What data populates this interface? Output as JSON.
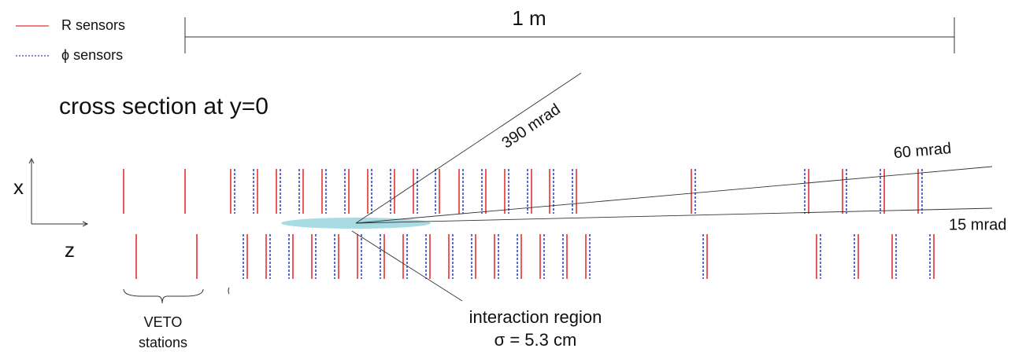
{
  "legend": {
    "r_sensors": "R sensors",
    "phi_sensors": "ϕ sensors"
  },
  "scale_bar": "1 m",
  "title": "cross section at y=0",
  "angles": {
    "wide": "390 mrad",
    "mid": "60 mrad",
    "narrow": "15 mrad"
  },
  "axes": {
    "x": "x",
    "z": "z"
  },
  "veto": {
    "line1": "VETO",
    "line2": "stations"
  },
  "interaction": {
    "label": "interaction region",
    "sigma": "σ = 5.3 cm"
  }
}
